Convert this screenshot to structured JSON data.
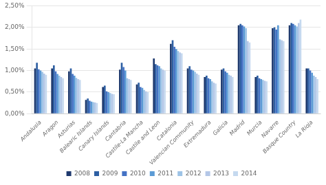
{
  "chart_data": {
    "type": "bar",
    "categories": [
      "Andalusia",
      "Aragon",
      "Asturias",
      "Balearic Islands",
      "Canary Islands",
      "Cantabria",
      "Castile-La Mancha",
      "Castile and Leon",
      "Catalonia",
      "Valencian Community",
      "Extremadura",
      "Galicia",
      "Madrid",
      "Murcia",
      "Navarre",
      "Basque Country",
      "La Rioja"
    ],
    "series": [
      {
        "name": "2008",
        "color": "#1f3a6e",
        "values": [
          1.05,
          1.05,
          0.98,
          0.32,
          0.62,
          1.02,
          0.68,
          1.28,
          1.62,
          1.05,
          0.85,
          1.02,
          2.05,
          0.85,
          1.98,
          2.05,
          1.05
        ]
      },
      {
        "name": "2009",
        "color": "#2e5fa3",
        "values": [
          1.18,
          1.12,
          1.05,
          0.35,
          0.65,
          1.18,
          0.72,
          1.15,
          1.7,
          1.1,
          0.88,
          1.05,
          2.08,
          0.88,
          2.0,
          2.1,
          1.05
        ]
      },
      {
        "name": "2010",
        "color": "#4472c4",
        "values": [
          1.03,
          0.98,
          0.92,
          0.3,
          0.52,
          1.08,
          0.62,
          1.12,
          1.55,
          1.02,
          0.82,
          0.98,
          2.05,
          0.82,
          1.95,
          2.08,
          1.0
        ]
      },
      {
        "name": "2011",
        "color": "#5b9bd5",
        "values": [
          1.0,
          0.92,
          0.88,
          0.28,
          0.5,
          1.0,
          0.6,
          1.1,
          1.5,
          1.0,
          0.8,
          0.95,
          2.02,
          0.8,
          2.05,
          2.05,
          0.95
        ]
      },
      {
        "name": "2012",
        "color": "#9dc3e6",
        "values": [
          0.97,
          0.88,
          0.83,
          0.27,
          0.48,
          0.82,
          0.55,
          1.05,
          1.45,
          0.97,
          0.75,
          0.9,
          1.98,
          0.78,
          1.72,
          2.02,
          0.88
        ]
      },
      {
        "name": "2013",
        "color": "#b4c7e7",
        "values": [
          0.93,
          0.85,
          0.8,
          0.26,
          0.46,
          0.8,
          0.52,
          1.02,
          1.42,
          0.93,
          0.72,
          0.88,
          1.68,
          0.76,
          1.7,
          2.1,
          0.85
        ]
      },
      {
        "name": "2014",
        "color": "#c5d9ef",
        "values": [
          0.9,
          0.82,
          0.78,
          0.25,
          0.45,
          0.78,
          0.5,
          1.0,
          1.4,
          0.9,
          0.7,
          0.85,
          1.65,
          0.75,
          1.68,
          2.18,
          0.8
        ]
      }
    ],
    "ylim": [
      0,
      2.5
    ],
    "yticks": [
      {
        "value": 0.0,
        "label": "0,00%"
      },
      {
        "value": 0.5,
        "label": "0,50%"
      },
      {
        "value": 1.0,
        "label": "1,00%"
      },
      {
        "value": 1.5,
        "label": "1,50%"
      },
      {
        "value": 2.0,
        "label": "2,00%"
      },
      {
        "value": 2.5,
        "label": "2,50%"
      }
    ],
    "grid": true,
    "legend": "bottom"
  }
}
